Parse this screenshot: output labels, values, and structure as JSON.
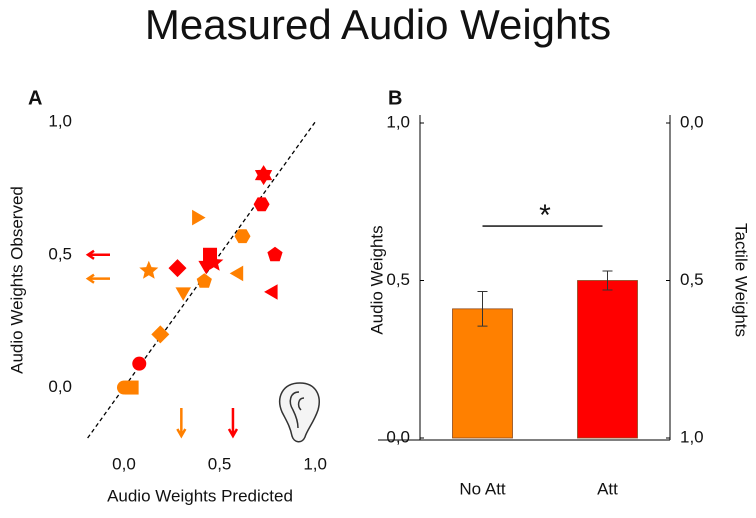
{
  "title": "Measured Audio Weights",
  "chart_data": [
    {
      "type": "scatter",
      "panel": "A",
      "x_label": "Audio Weights Predicted",
      "y_label": "Audio Weights Observed",
      "xlim": [
        -0.23,
        1.02
      ],
      "ylim": [
        -0.19,
        1.0
      ],
      "xticks": [
        {
          "value": 0,
          "label": "0,0"
        },
        {
          "value": 0.5,
          "label": "0,5"
        },
        {
          "value": 1,
          "label": "1,0"
        }
      ],
      "yticks": [
        {
          "value": 0,
          "label": "0,0"
        },
        {
          "value": 0.5,
          "label": "0,5"
        },
        {
          "value": 1,
          "label": "1,0"
        }
      ],
      "identity_line": true,
      "series": [
        {
          "color": "#ff8000",
          "x": [
            0,
            0.04,
            0.19,
            0.13,
            0.38,
            0.31,
            0.42,
            0.62,
            0.6
          ],
          "values": [
            0,
            0,
            0.2,
            0.44,
            0.64,
            0.36,
            0.4,
            0.57,
            0.43
          ],
          "markers": [
            "circle",
            "square",
            "diamond",
            "star5",
            "tri-right",
            "tri-down",
            "pentagon",
            "hexagon",
            "tri-left"
          ]
        },
        {
          "color": "#ff0000",
          "x": [
            0.08,
            0.28,
            0.45,
            0.47,
            0.43,
            0.72,
            0.73,
            0.79,
            0.78
          ],
          "values": [
            0.09,
            0.45,
            0.5,
            0.47,
            0.46,
            0.69,
            0.8,
            0.5,
            0.36
          ],
          "markers": [
            "circle",
            "diamond",
            "square",
            "star5",
            "tri-down",
            "hexagon",
            "star6",
            "pentagon",
            "tri-left"
          ]
        }
      ],
      "arrows": [
        {
          "axis": "y",
          "value": 0.5,
          "color": "#ff0000"
        },
        {
          "axis": "y",
          "value": 0.41,
          "color": "#ff8000"
        },
        {
          "axis": "x",
          "value": 0.3,
          "color": "#ff8000"
        },
        {
          "axis": "x",
          "value": 0.57,
          "color": "#ff0000"
        }
      ]
    },
    {
      "type": "bar",
      "panel": "B",
      "y_label": "Audio Weights",
      "y2_label": "Tactile Weights",
      "categories": [
        "No Att",
        "Att"
      ],
      "values": [
        0.41,
        0.5
      ],
      "errors": [
        0.055,
        0.03
      ],
      "colors": [
        "#ff8000",
        "#ff0000"
      ],
      "ylim": [
        0,
        1
      ],
      "y2lim": [
        1,
        0
      ],
      "yticks": [
        {
          "value": 0,
          "label": "0,0"
        },
        {
          "value": 0.5,
          "label": "0,5"
        },
        {
          "value": 1,
          "label": "1,0"
        }
      ],
      "y2ticks": [
        {
          "value": 0,
          "label": "0,0"
        },
        {
          "value": 0.5,
          "label": "0,5"
        },
        {
          "value": 1,
          "label": "1,0"
        }
      ],
      "significance": "*"
    }
  ]
}
